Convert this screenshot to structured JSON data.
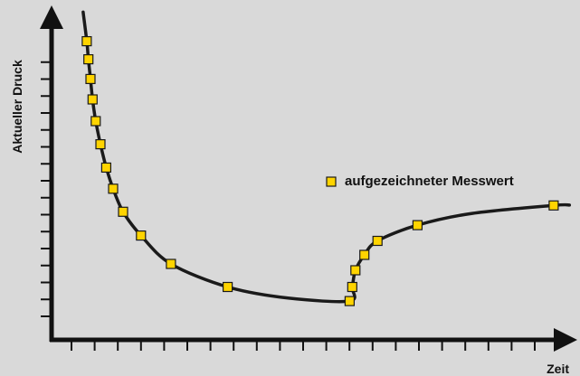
{
  "chart_data": {
    "type": "line",
    "title": "",
    "xlabel": "Zeit",
    "ylabel": "Aktueller Druck",
    "xlim": [
      0,
      100
    ],
    "ylim": [
      0,
      100
    ],
    "grid": false,
    "legend_position": "right",
    "ticks": {
      "x_count": 21,
      "y_count": 16,
      "labels": false
    },
    "series": [
      {
        "name": "aufgezeichneter Messwert",
        "marker": "square",
        "points": [
          {
            "x": 6.7,
            "y": 89.3
          },
          {
            "x": 7.0,
            "y": 83.9
          },
          {
            "x": 7.4,
            "y": 78.0
          },
          {
            "x": 7.8,
            "y": 71.9
          },
          {
            "x": 8.4,
            "y": 65.4
          },
          {
            "x": 9.3,
            "y": 58.5
          },
          {
            "x": 10.4,
            "y": 51.5
          },
          {
            "x": 11.7,
            "y": 45.2
          },
          {
            "x": 13.6,
            "y": 38.3
          },
          {
            "x": 17.0,
            "y": 31.2
          },
          {
            "x": 22.7,
            "y": 22.7
          },
          {
            "x": 33.5,
            "y": 15.8
          },
          {
            "x": 56.7,
            "y": 11.6
          },
          {
            "x": 57.2,
            "y": 15.8
          },
          {
            "x": 57.8,
            "y": 20.8
          },
          {
            "x": 59.5,
            "y": 25.4
          },
          {
            "x": 62.0,
            "y": 29.6
          },
          {
            "x": 69.6,
            "y": 34.3
          },
          {
            "x": 95.5,
            "y": 40.2
          }
        ]
      }
    ],
    "curve": [
      {
        "x": 6.0,
        "y": 98.0
      },
      {
        "x": 6.7,
        "y": 89.3
      },
      {
        "x": 7.0,
        "y": 83.9
      },
      {
        "x": 7.4,
        "y": 78.0
      },
      {
        "x": 7.8,
        "y": 71.9
      },
      {
        "x": 8.4,
        "y": 65.4
      },
      {
        "x": 9.3,
        "y": 58.5
      },
      {
        "x": 10.4,
        "y": 51.5
      },
      {
        "x": 11.7,
        "y": 45.2
      },
      {
        "x": 13.6,
        "y": 38.3
      },
      {
        "x": 17.0,
        "y": 31.2
      },
      {
        "x": 22.7,
        "y": 22.7
      },
      {
        "x": 33.5,
        "y": 15.8
      },
      {
        "x": 45.0,
        "y": 12.5
      },
      {
        "x": 56.7,
        "y": 11.6
      },
      {
        "x": 57.2,
        "y": 15.8
      },
      {
        "x": 57.8,
        "y": 20.8
      },
      {
        "x": 59.5,
        "y": 25.4
      },
      {
        "x": 62.0,
        "y": 29.6
      },
      {
        "x": 69.6,
        "y": 34.3
      },
      {
        "x": 80.0,
        "y": 37.8
      },
      {
        "x": 95.5,
        "y": 40.2
      },
      {
        "x": 98.5,
        "y": 40.3
      }
    ]
  },
  "legend": {
    "label": "aufgezeichneter Messwert"
  },
  "colors": {
    "background": "#d9d9d9",
    "axis": "#111111",
    "curve": "#1a1a1a",
    "marker_fill": "#ffd400",
    "marker_stroke": "#1a1a1a"
  }
}
